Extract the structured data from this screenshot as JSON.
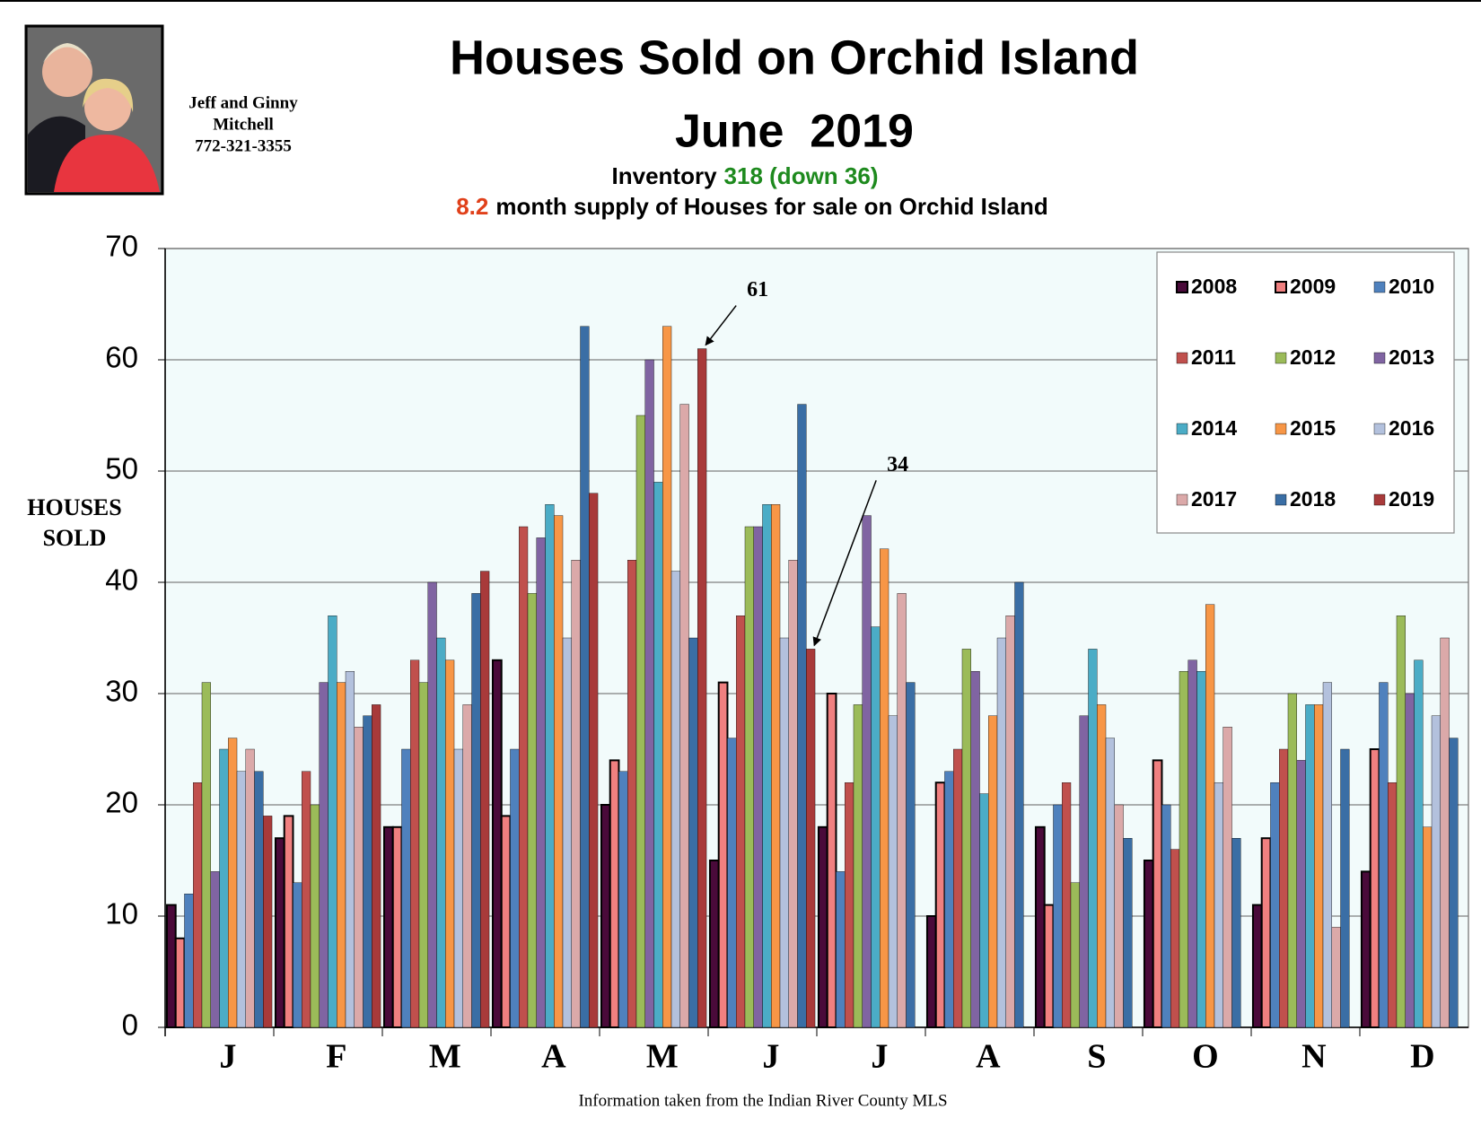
{
  "contact": {
    "lines": [
      "Jeff and Ginny",
      "Mitchell",
      "772-321-3355"
    ]
  },
  "chart_data": {
    "type": "bar",
    "title": "Houses Sold on Orchid Island",
    "subtitle": "June  2019",
    "inventory": {
      "label": "Inventory",
      "value": "318 (down 36)"
    },
    "supply": {
      "value": "8.2",
      "text": "month supply of Houses for sale on Orchid Island"
    },
    "y_label": [
      "HOUSES",
      "SOLD"
    ],
    "footer": "Information taken from the Indian River County MLS",
    "annotations": [
      {
        "text": "61",
        "series": "2019"
      },
      {
        "text": "34",
        "series": "2019"
      }
    ],
    "categories": [
      "J",
      "F",
      "M",
      "A",
      "M",
      "J",
      "J",
      "A",
      "S",
      "O",
      "N",
      "D"
    ],
    "ylim": [
      0,
      70
    ],
    "yticks": [
      0,
      10,
      20,
      30,
      40,
      50,
      60,
      70
    ],
    "grid": true,
    "legend": "top-right",
    "series": [
      {
        "name": "2008",
        "color": "#4a0a3a",
        "values": [
          11,
          17,
          18,
          33,
          20,
          15,
          18,
          10,
          18,
          15,
          11,
          14
        ]
      },
      {
        "name": "2009",
        "color": "#f08080",
        "values": [
          8,
          19,
          18,
          19,
          24,
          31,
          30,
          22,
          11,
          24,
          17,
          25
        ]
      },
      {
        "name": "2010",
        "color": "#4f81bd",
        "values": [
          12,
          13,
          25,
          25,
          23,
          26,
          14,
          23,
          20,
          20,
          22,
          31
        ]
      },
      {
        "name": "2011",
        "color": "#c0504d",
        "values": [
          22,
          23,
          33,
          45,
          42,
          37,
          22,
          25,
          22,
          16,
          25,
          22
        ]
      },
      {
        "name": "2012",
        "color": "#9bbb59",
        "values": [
          31,
          20,
          31,
          39,
          55,
          45,
          29,
          34,
          13,
          32,
          30,
          37
        ]
      },
      {
        "name": "2013",
        "color": "#8064a2",
        "values": [
          14,
          31,
          40,
          44,
          60,
          45,
          46,
          32,
          28,
          33,
          24,
          30
        ]
      },
      {
        "name": "2014",
        "color": "#4bacc6",
        "values": [
          25,
          37,
          35,
          47,
          49,
          47,
          36,
          21,
          34,
          32,
          29,
          33
        ]
      },
      {
        "name": "2015",
        "color": "#f79646",
        "values": [
          26,
          31,
          33,
          46,
          63,
          47,
          43,
          28,
          29,
          38,
          29,
          18
        ]
      },
      {
        "name": "2016",
        "color": "#b3c1dd",
        "values": [
          23,
          32,
          25,
          35,
          41,
          35,
          28,
          35,
          26,
          22,
          31,
          28
        ]
      },
      {
        "name": "2017",
        "color": "#dba9a9",
        "values": [
          25,
          27,
          29,
          42,
          56,
          42,
          39,
          37,
          20,
          27,
          9,
          35
        ]
      },
      {
        "name": "2018",
        "color": "#3a6ea5",
        "values": [
          23,
          28,
          39,
          63,
          35,
          56,
          31,
          40,
          17,
          17,
          25,
          26
        ]
      },
      {
        "name": "2019",
        "color": "#a83a3a",
        "values": [
          19,
          29,
          41,
          48,
          61,
          34,
          null,
          null,
          null,
          null,
          null,
          null
        ]
      }
    ]
  }
}
